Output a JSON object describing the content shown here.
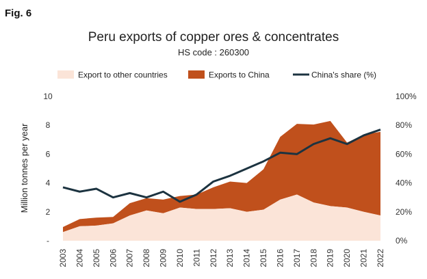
{
  "figure_label": "Fig. 6",
  "chart_data": {
    "type": "area",
    "title": "Peru exports of copper ores & concentrates",
    "subtitle": "HS code : 260300",
    "ylabel": "Million tonnes per year",
    "x": [
      "2003",
      "2004",
      "2005",
      "2006",
      "2007",
      "2008",
      "2009",
      "2010",
      "2011",
      "2012",
      "2013",
      "2014",
      "2015",
      "2016",
      "2017",
      "2018",
      "2019",
      "2020",
      "2021",
      "2022"
    ],
    "ylim": [
      0,
      10
    ],
    "y_ticks": [
      "-",
      "2",
      "4",
      "6",
      "8",
      "10"
    ],
    "y2lim": [
      0,
      100
    ],
    "y2_ticks": [
      "0%",
      "20%",
      "40%",
      "60%",
      "80%",
      "100%"
    ],
    "legend_position": "top",
    "series": [
      {
        "name": "Export to other countries",
        "kind": "stacked-area",
        "color": "#fbe4d8",
        "values": [
          0.6,
          1.0,
          1.05,
          1.2,
          1.75,
          2.1,
          1.9,
          2.3,
          2.2,
          2.2,
          2.25,
          2.0,
          2.15,
          2.85,
          3.2,
          2.65,
          2.4,
          2.3,
          2.0,
          1.75
        ]
      },
      {
        "name": "Exports to China",
        "kind": "stacked-area",
        "color": "#c0501c",
        "values": [
          0.35,
          0.5,
          0.55,
          0.45,
          0.85,
          0.85,
          0.95,
          0.8,
          1.0,
          1.5,
          1.85,
          2.0,
          2.8,
          4.35,
          4.9,
          5.4,
          5.9,
          4.5,
          5.35,
          5.8
        ]
      },
      {
        "name": "China's share (%)",
        "kind": "line",
        "axis": "right",
        "color": "#1c3340",
        "values": [
          37,
          34,
          36,
          30,
          33,
          30,
          34,
          27,
          32,
          41,
          45,
          50,
          55,
          61,
          60,
          67,
          71,
          67,
          73,
          77
        ]
      }
    ]
  }
}
